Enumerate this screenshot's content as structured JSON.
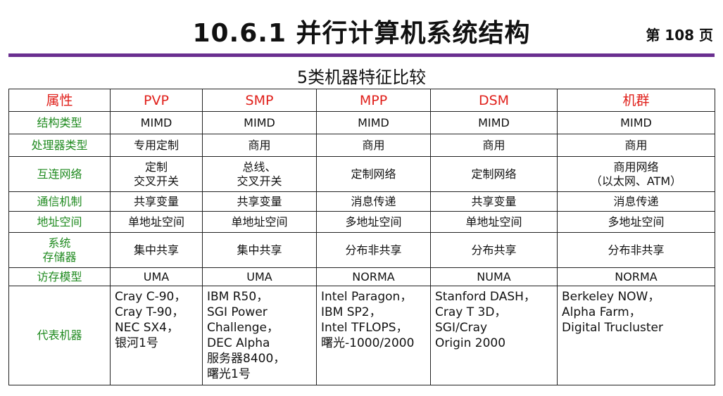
{
  "header": {
    "title": "10.6.1 并行计算机系统结构",
    "page_label": "第 108 页",
    "subtitle": "5类机器特征比较",
    "rule_color": "#6a2f90"
  },
  "table": {
    "columns": [
      "属性",
      "PVP",
      "SMP",
      "MPP",
      "DSM",
      "机群"
    ],
    "rows": [
      {
        "attr": [
          "结构类型"
        ],
        "cells": [
          [
            "MIMD"
          ],
          [
            "MIMD"
          ],
          [
            "MIMD"
          ],
          [
            "MIMD"
          ],
          [
            "MIMD"
          ]
        ]
      },
      {
        "attr": [
          "处理器类型"
        ],
        "cells": [
          [
            "专用定制"
          ],
          [
            "商用"
          ],
          [
            "商用"
          ],
          [
            "商用"
          ],
          [
            "商用"
          ]
        ]
      },
      {
        "attr": [
          "互连网络"
        ],
        "cells": [
          [
            "定制",
            "交叉开关"
          ],
          [
            "总线、",
            "交叉开关"
          ],
          [
            "定制网络"
          ],
          [
            "定制网络"
          ],
          [
            "商用网络",
            "（以太网、ATM）"
          ]
        ]
      },
      {
        "attr": [
          "通信机制"
        ],
        "cells": [
          [
            "共享变量"
          ],
          [
            "共享变量"
          ],
          [
            "消息传递"
          ],
          [
            "共享变量"
          ],
          [
            "消息传递"
          ]
        ]
      },
      {
        "attr": [
          "地址空间"
        ],
        "cells": [
          [
            "单地址空间"
          ],
          [
            "单地址空间"
          ],
          [
            "多地址空间"
          ],
          [
            "单地址空间"
          ],
          [
            "多地址空间"
          ]
        ]
      },
      {
        "attr": [
          "系统",
          "存储器"
        ],
        "cells": [
          [
            "集中共享"
          ],
          [
            "集中共享"
          ],
          [
            "分布非共享"
          ],
          [
            "分布共享"
          ],
          [
            "分布非共享"
          ]
        ]
      },
      {
        "attr": [
          "访存模型"
        ],
        "cells": [
          [
            "UMA"
          ],
          [
            "UMA"
          ],
          [
            "NORMA"
          ],
          [
            "NUMA"
          ],
          [
            "NORMA"
          ]
        ]
      },
      {
        "attr": [
          "代表机器"
        ],
        "cells": [
          [
            "Cray C-90，",
            "Cray T-90，",
            "NEC SX4，",
            "银河1号"
          ],
          [
            "IBM R50，",
            "SGI Power",
            "Challenge，",
            "DEC Alpha",
            "服务器8400，",
            "曙光1号"
          ],
          [
            "Intel Paragon，",
            "IBM SP2，",
            "Intel TFLOPS，",
            "曙光-1000/2000"
          ],
          [
            "Stanford DASH，",
            "Cray T 3D，",
            "SGI/Cray",
            "Origin 2000"
          ],
          [
            "Berkeley NOW，",
            "Alpha Farm，",
            "Digital Trucluster"
          ]
        ]
      }
    ],
    "colors": {
      "header_text": "#e0201b",
      "attr_text": "#1f8a1f"
    }
  }
}
